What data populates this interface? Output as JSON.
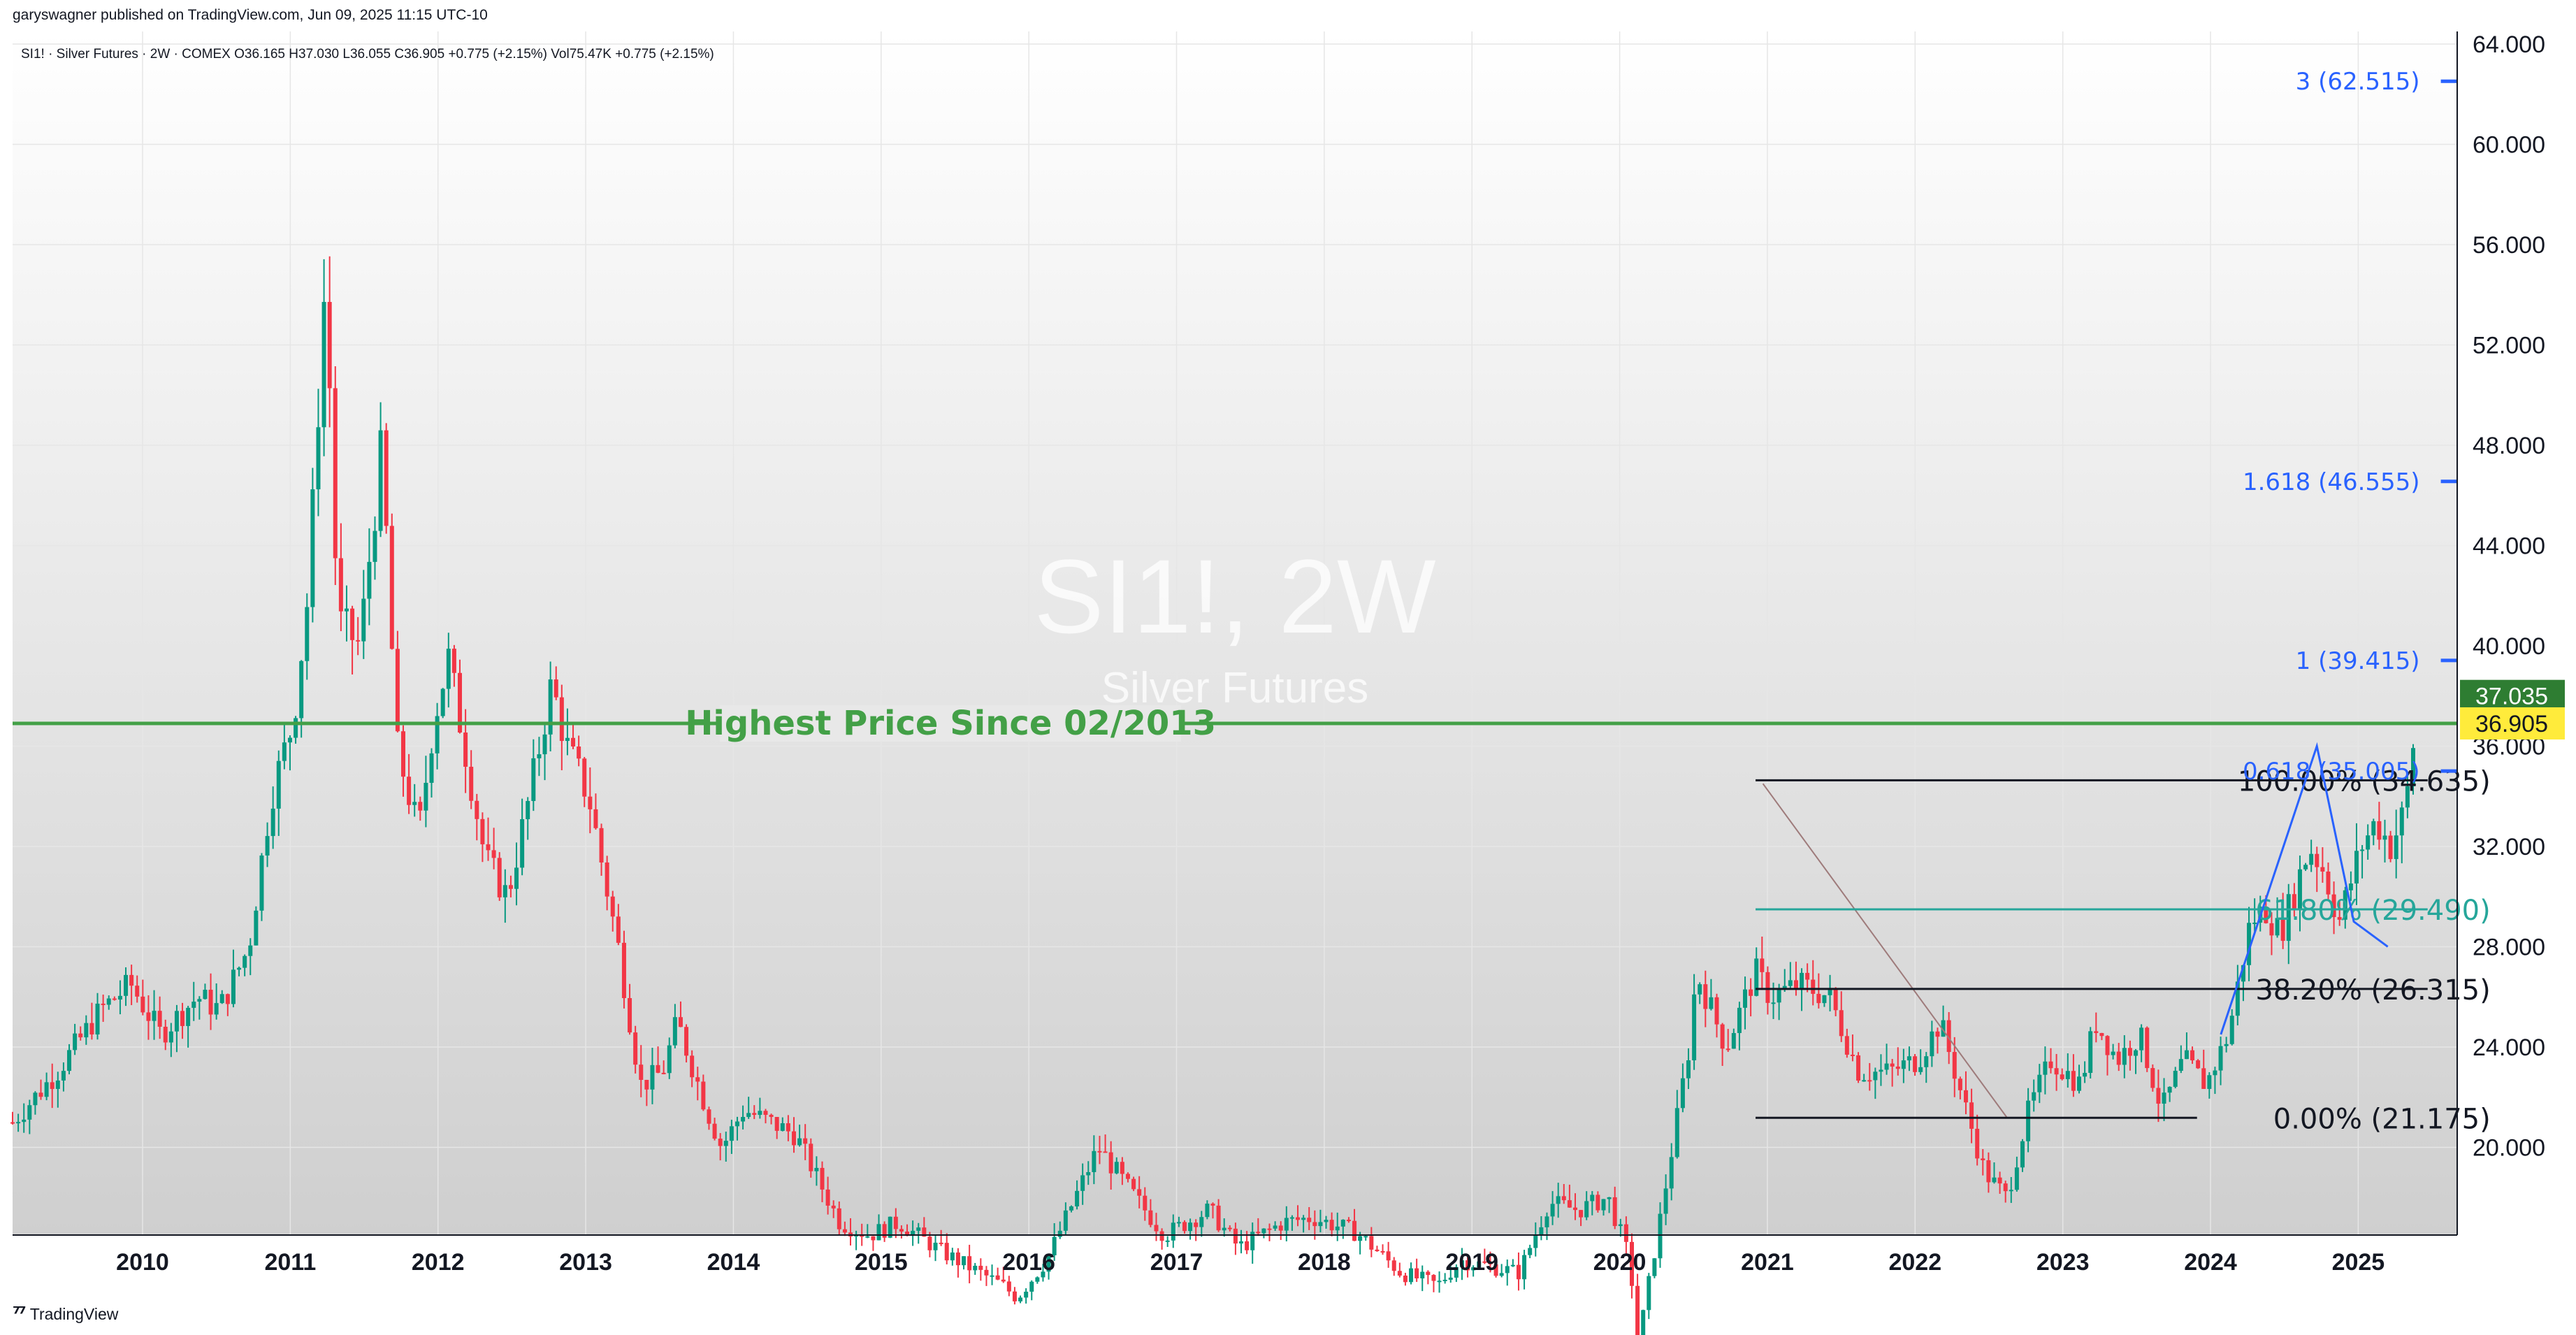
{
  "publisher": "garyswagner published on TradingView.com, Jun 09, 2025 11:15 UTC-10",
  "footer": {
    "brand": "TradingView",
    "logo_icon": "tradingview-logo-icon"
  },
  "legend_text": "SI1! · Silver Futures · 2W · COMEX  O36.165  H37.030  L36.055  C36.905  +0.775 (+2.15%)  Vol75.47K  +0.775 (+2.15%)",
  "watermark": {
    "symbol": "SI1!, 2W",
    "name": "Silver Futures"
  },
  "colors": {
    "up": "#089981",
    "down": "#f23645",
    "green_line": "#43a047",
    "blue": "#2962ff",
    "price_badge": "#ffeb3b",
    "high_badge": "#2e7d32",
    "teal": "#26a69a"
  },
  "chart_data": {
    "type": "candlestick",
    "symbol": "SI1!",
    "interval": "2W",
    "x_range": [
      2009.2,
      2025.75
    ],
    "y_range": [
      16.5,
      64.5
    ],
    "y_ticks": [
      "64.000",
      "60.000",
      "56.000",
      "52.000",
      "48.000",
      "44.000",
      "40.000",
      "36.000",
      "32.000",
      "28.000",
      "24.000",
      "20.000"
    ],
    "x_ticks": [
      "2010",
      "2011",
      "2012",
      "2013",
      "2014",
      "2015",
      "2016",
      "2017",
      "2018",
      "2019",
      "2020",
      "2021",
      "2022",
      "2023",
      "2024",
      "2025"
    ],
    "price_path": [
      [
        2009.2,
        21.0
      ],
      [
        2009.5,
        23.0
      ],
      [
        2009.8,
        25.5
      ],
      [
        2010.0,
        26.5
      ],
      [
        2010.2,
        24.5
      ],
      [
        2010.45,
        26.0
      ],
      [
        2010.6,
        25.5
      ],
      [
        2010.8,
        28.0
      ],
      [
        2010.95,
        34.0
      ],
      [
        2011.1,
        37.0
      ],
      [
        2011.2,
        42.0
      ],
      [
        2011.32,
        55.0
      ],
      [
        2011.4,
        41.0
      ],
      [
        2011.55,
        40.0
      ],
      [
        2011.7,
        48.0
      ],
      [
        2011.8,
        36.0
      ],
      [
        2011.95,
        32.5
      ],
      [
        2012.05,
        37.0
      ],
      [
        2012.15,
        39.5
      ],
      [
        2012.4,
        31.5
      ],
      [
        2012.55,
        30.0
      ],
      [
        2012.7,
        34.0
      ],
      [
        2012.85,
        38.5
      ],
      [
        2012.95,
        36.0
      ],
      [
        2013.1,
        34.0
      ],
      [
        2013.3,
        28.0
      ],
      [
        2013.45,
        22.5
      ],
      [
        2013.6,
        23.0
      ],
      [
        2013.7,
        25.0
      ],
      [
        2013.9,
        21.5
      ],
      [
        2014.0,
        20.0
      ],
      [
        2014.15,
        21.5
      ],
      [
        2014.5,
        20.5
      ],
      [
        2014.8,
        17.0
      ],
      [
        2015.0,
        16.5
      ],
      [
        2015.2,
        17.0
      ],
      [
        2015.5,
        15.8
      ],
      [
        2015.9,
        14.5
      ],
      [
        2016.0,
        14.0
      ],
      [
        2016.2,
        15.5
      ],
      [
        2016.55,
        20.0
      ],
      [
        2016.8,
        18.0
      ],
      [
        2017.0,
        16.5
      ],
      [
        2017.3,
        17.5
      ],
      [
        2017.5,
        16.0
      ],
      [
        2017.8,
        17.0
      ],
      [
        2018.0,
        17.2
      ],
      [
        2018.3,
        16.6
      ],
      [
        2018.6,
        15.0
      ],
      [
        2018.85,
        14.5
      ],
      [
        2019.0,
        15.5
      ],
      [
        2019.4,
        15.0
      ],
      [
        2019.6,
        17.8
      ],
      [
        2019.8,
        17.5
      ],
      [
        2020.0,
        18.0
      ],
      [
        2020.15,
        15.5
      ],
      [
        2020.2,
        12.0
      ],
      [
        2020.35,
        17.0
      ],
      [
        2020.55,
        24.0
      ],
      [
        2020.6,
        27.0
      ],
      [
        2020.8,
        24.0
      ],
      [
        2021.0,
        27.0
      ],
      [
        2021.1,
        26.0
      ],
      [
        2021.3,
        26.5
      ],
      [
        2021.5,
        26.0
      ],
      [
        2021.7,
        23.0
      ],
      [
        2021.9,
        23.0
      ],
      [
        2022.1,
        23.5
      ],
      [
        2022.25,
        25.0
      ],
      [
        2022.4,
        22.0
      ],
      [
        2022.55,
        19.0
      ],
      [
        2022.7,
        18.0
      ],
      [
        2022.85,
        21.5
      ],
      [
        2023.0,
        23.5
      ],
      [
        2023.2,
        22.5
      ],
      [
        2023.3,
        25.0
      ],
      [
        2023.45,
        23.5
      ],
      [
        2023.6,
        24.5
      ],
      [
        2023.75,
        21.5
      ],
      [
        2023.9,
        23.5
      ],
      [
        2024.05,
        22.5
      ],
      [
        2024.2,
        24.5
      ],
      [
        2024.35,
        29.0
      ],
      [
        2024.45,
        29.5
      ],
      [
        2024.55,
        28.5
      ],
      [
        2024.75,
        32.0
      ],
      [
        2024.85,
        31.0
      ],
      [
        2024.95,
        29.0
      ],
      [
        2025.1,
        32.0
      ],
      [
        2025.2,
        33.0
      ],
      [
        2025.3,
        32.0
      ],
      [
        2025.4,
        33.5
      ],
      [
        2025.45,
        36.0
      ],
      [
        2025.48,
        36.9
      ]
    ],
    "horizontal_line": {
      "price": 36.905,
      "label": "Highest Price Since 02/2013"
    },
    "last_price": "36.905",
    "high_price": "37.035",
    "fib_extension": [
      {
        "label": "3 (62.515)",
        "price": 62.515
      },
      {
        "label": "1.618 (46.555)",
        "price": 46.555
      },
      {
        "label": "1 (39.415)",
        "price": 39.415
      },
      {
        "label": "0.618 (35.005)",
        "price": 35.005
      }
    ],
    "fib_retracement": [
      {
        "label": "100.00% (34.635)",
        "price": 34.635
      },
      {
        "label": "61.80% (29.490)",
        "price": 29.49
      },
      {
        "label": "38.20% (26.315)",
        "price": 26.315
      },
      {
        "label": "0.00% (21.175)",
        "price": 21.175
      }
    ],
    "fib_retracement_x": [
      2021.0,
      2025.55
    ],
    "fib_extension_x": [
      2025.45,
      2025.75
    ],
    "zigzag": [
      [
        2024.15,
        24.5
      ],
      [
        2024.8,
        36.0
      ],
      [
        2025.05,
        29.0
      ],
      [
        2025.28,
        28.0
      ]
    ],
    "trend_line": [
      [
        2021.05,
        34.5
      ],
      [
        2022.7,
        21.2
      ]
    ]
  }
}
